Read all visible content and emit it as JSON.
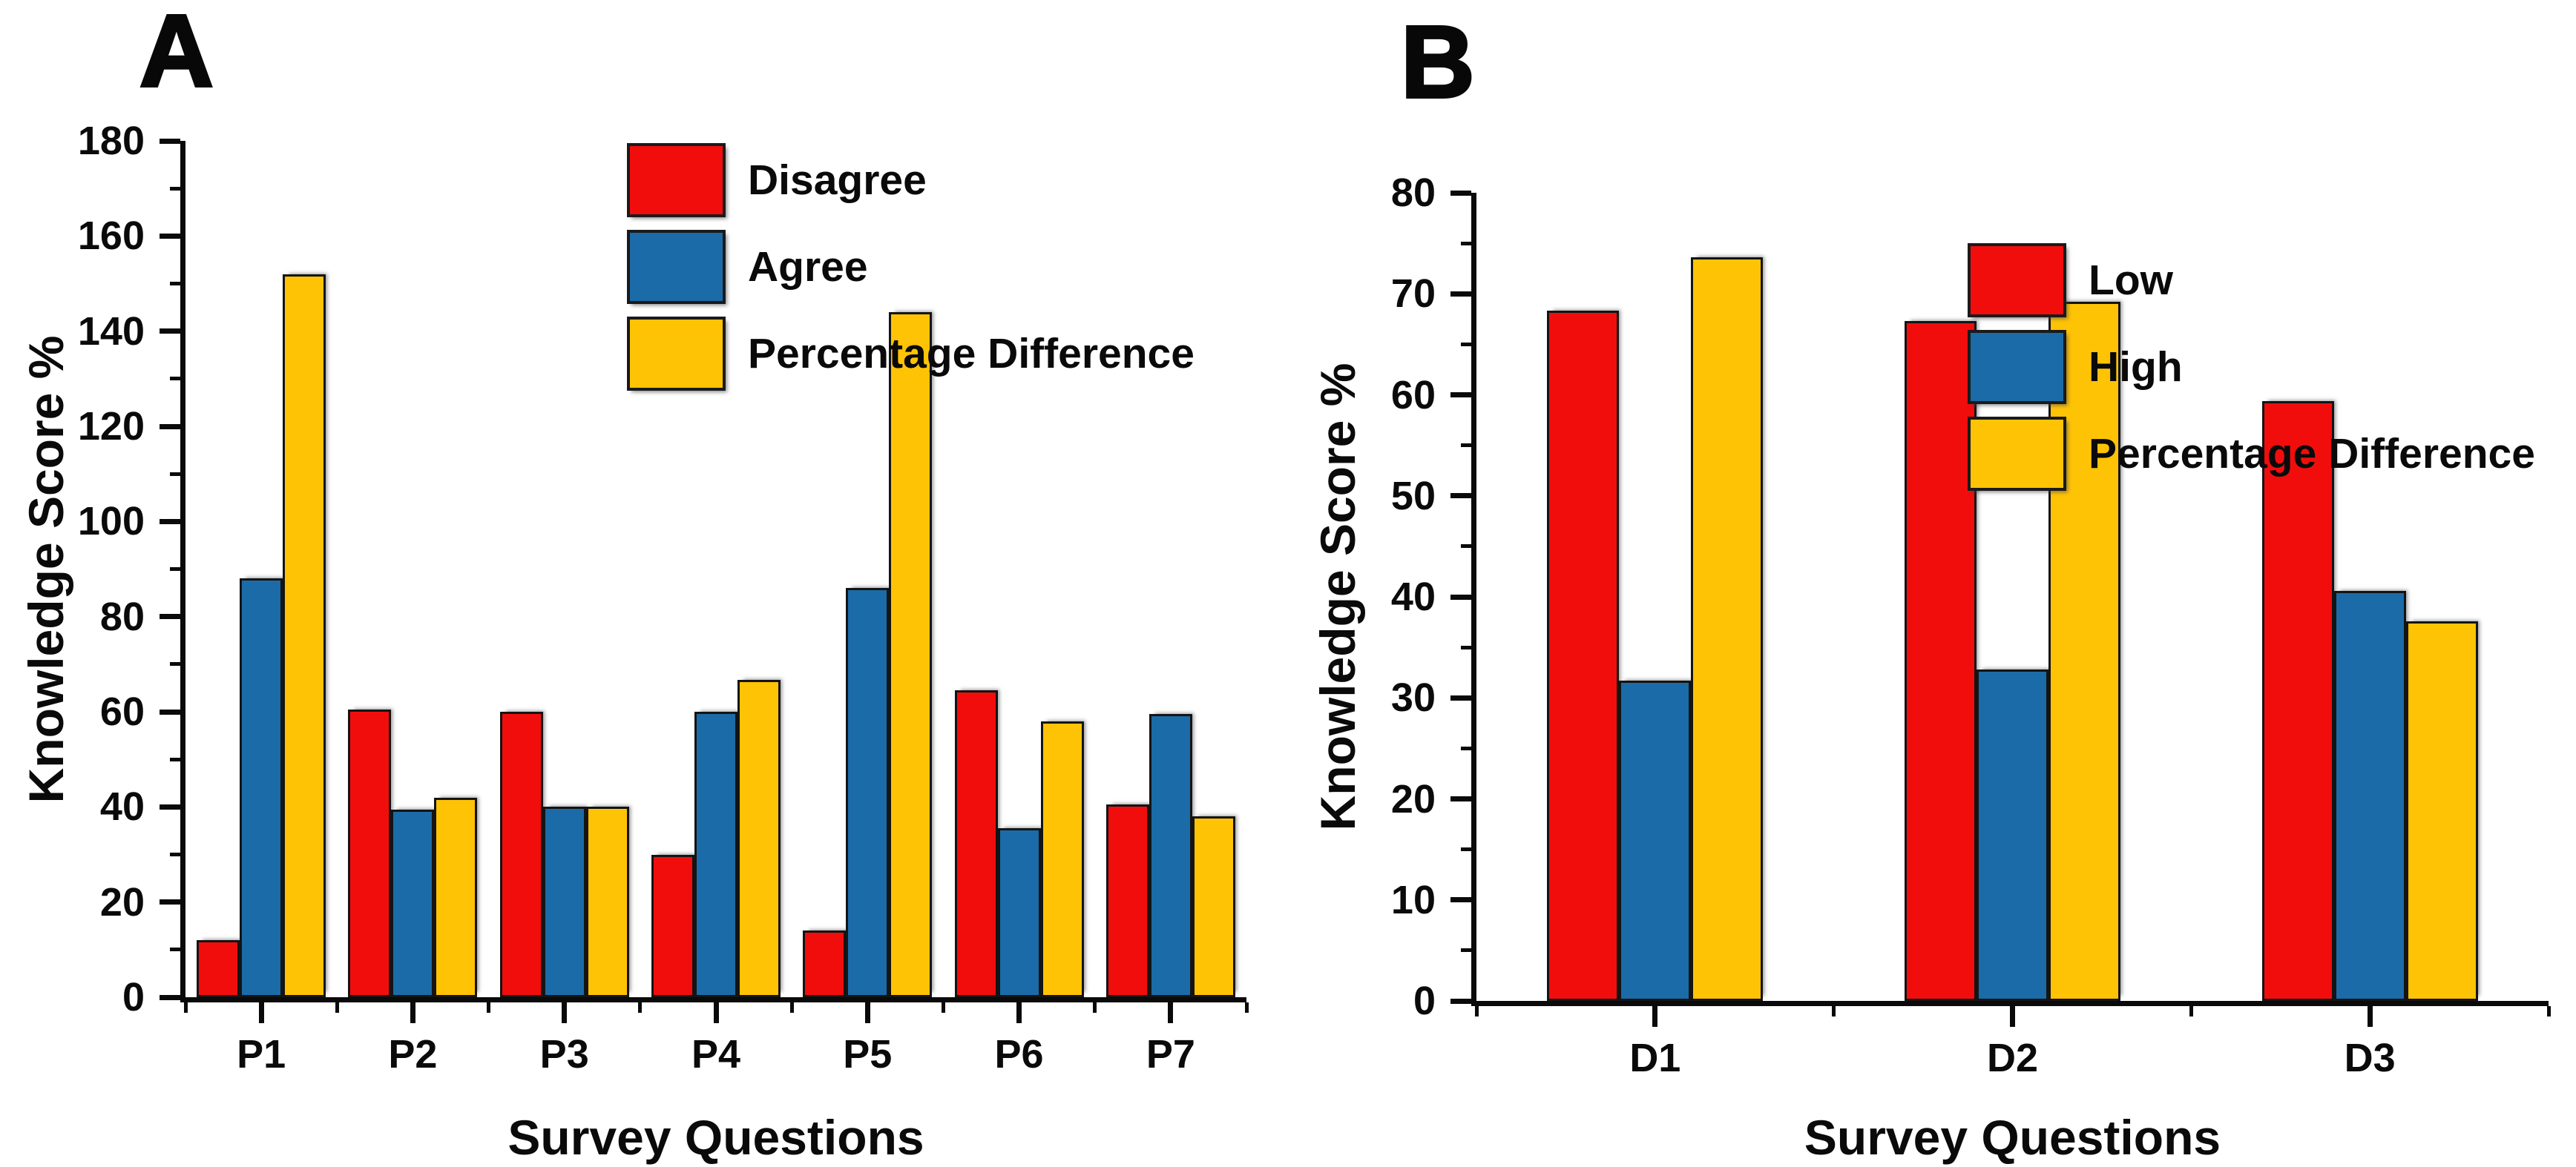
{
  "figure": {
    "background": "#FFFFFF",
    "text_color": "#0A0A0A",
    "axis_color": "#0A0A0A",
    "bar_border_color": "#141414"
  },
  "chart_data": [
    {
      "type": "bar",
      "panel_label": "A",
      "title": "",
      "xlabel": "Survey Questions",
      "ylabel": "Knowledge Score %",
      "categories": [
        "P1",
        "P2",
        "P3",
        "P4",
        "P5",
        "P6",
        "P7"
      ],
      "series": [
        {
          "name": "Disagree",
          "color": "#F20D0D",
          "values": [
            12,
            60.5,
            60,
            30,
            14,
            64.5,
            40.5
          ]
        },
        {
          "name": "Agree",
          "color": "#1B6BA8",
          "values": [
            88,
            39.5,
            40,
            60,
            86,
            35.5,
            59.5
          ]
        },
        {
          "name": "Percentage Difference",
          "color": "#FFC306",
          "values": [
            152,
            42,
            40,
            66.7,
            144,
            58,
            38
          ]
        }
      ],
      "ylim": [
        0,
        180
      ],
      "ytick_major": 20,
      "ytick_minor": 10,
      "grid": false,
      "legend_position": "top-center-inside"
    },
    {
      "type": "bar",
      "panel_label": "B",
      "title": "",
      "xlabel": "Survey Questions",
      "ylabel": "Knowledge Score %",
      "categories": [
        "D1",
        "D2",
        "D3"
      ],
      "series": [
        {
          "name": "Low",
          "color": "#F20D0D",
          "values": [
            68.3,
            67.3,
            59.4
          ]
        },
        {
          "name": "High",
          "color": "#1B6BA8",
          "values": [
            31.7,
            32.8,
            40.6
          ]
        },
        {
          "name": "Percentage Difference",
          "color": "#FFC306",
          "values": [
            73.6,
            69.2,
            37.6
          ]
        }
      ],
      "ylim": [
        0,
        80
      ],
      "ytick_major": 10,
      "ytick_minor": 5,
      "grid": false,
      "legend_position": "top-right-inside"
    }
  ]
}
